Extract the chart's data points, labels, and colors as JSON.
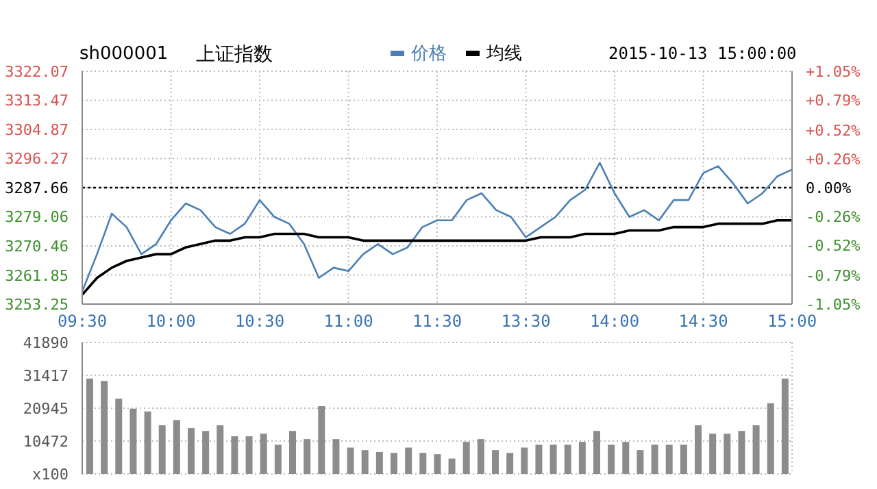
{
  "chart_data": [
    {
      "type": "line",
      "title": "上证指数",
      "subtitle": "sh000001",
      "annotations": [
        "2015-10-13 15:00:00"
      ],
      "categories": [
        "09:30",
        null,
        null,
        null,
        null,
        null,
        "10:00",
        null,
        null,
        null,
        null,
        null,
        "10:30",
        null,
        null,
        null,
        null,
        null,
        "11:00",
        null,
        null,
        null,
        null,
        null,
        "11:30",
        null,
        null,
        null,
        null,
        null,
        "13:30",
        null,
        null,
        null,
        null,
        null,
        "14:00",
        null,
        null,
        null,
        null,
        null,
        "14:30",
        null,
        null,
        null,
        null,
        null,
        "15:00"
      ],
      "series": [
        {
          "name": "价格",
          "color": "#4a7fb5",
          "values": [
            3257,
            3268,
            3280,
            3276,
            3268,
            3271,
            3278,
            3283,
            3281,
            3276,
            3274,
            3277,
            3284,
            3279,
            3277,
            3271,
            3261,
            3264,
            3263,
            3268,
            3271,
            3268,
            3270,
            3276,
            3278,
            3278,
            3284,
            3286,
            3281,
            3279,
            3273,
            3276,
            3279,
            3284,
            3287,
            3295,
            3286,
            3279,
            3281,
            3278,
            3284,
            3284,
            3292,
            3294,
            3289,
            3283,
            3286,
            3291,
            3293
          ]
        },
        {
          "name": "均线",
          "color": "#000000",
          "values": [
            3256,
            3261,
            3264,
            3266,
            3267,
            3268,
            3268,
            3270,
            3271,
            3272,
            3272,
            3273,
            3273,
            3274,
            3274,
            3274,
            3273,
            3273,
            3273,
            3272,
            3272,
            3272,
            3272,
            3272,
            3272,
            3272,
            3272,
            3272,
            3272,
            3272,
            3272,
            3273,
            3273,
            3273,
            3274,
            3274,
            3274,
            3275,
            3275,
            3275,
            3276,
            3276,
            3276,
            3277,
            3277,
            3277,
            3277,
            3278,
            3278
          ]
        }
      ],
      "ylim": [
        3253.25,
        3322.07
      ],
      "yticks": [
        3253.25,
        3261.85,
        3270.46,
        3279.06,
        3287.66,
        3296.27,
        3304.87,
        3313.47,
        3322.07
      ],
      "y2lim": [
        -1.05,
        1.05
      ],
      "y2ticks": [
        {
          "value": -1.05,
          "label": "-1.05%"
        },
        {
          "value": -0.79,
          "label": "-0.79%"
        },
        {
          "value": -0.52,
          "label": "-0.52%"
        },
        {
          "value": -0.26,
          "label": "-0.26%"
        },
        {
          "value": 0,
          "label": "0.00%"
        },
        {
          "value": 0.26,
          "label": "+0.26%"
        },
        {
          "value": 0.52,
          "label": "+0.52%"
        },
        {
          "value": 0.79,
          "label": "+0.79%"
        },
        {
          "value": 1.05,
          "label": "+1.05%"
        }
      ],
      "ref_lines": [
        {
          "axis": "y",
          "value": 3287.66,
          "color": "#000000",
          "line_style": "dotted"
        }
      ],
      "grid": true,
      "legend": "top",
      "marker": "none",
      "line_style": "solid"
    },
    {
      "type": "bar",
      "categories": [
        null,
        null,
        null,
        null,
        null,
        null,
        null,
        null,
        null,
        null,
        null,
        null,
        null,
        null,
        null,
        null,
        null,
        null,
        null,
        null,
        null,
        null,
        null,
        null,
        null,
        null,
        null,
        null,
        null,
        null,
        null,
        null,
        null,
        null,
        null,
        null,
        null,
        null,
        null,
        null,
        null,
        null,
        null,
        null,
        null,
        null,
        null,
        null,
        null
      ],
      "values": [
        30400,
        29600,
        24000,
        20800,
        19900,
        15500,
        17200,
        14600,
        13700,
        15500,
        12000,
        12000,
        12800,
        9300,
        13700,
        11100,
        21600,
        11100,
        8400,
        7600,
        7000,
        6700,
        8400,
        6700,
        6300,
        4900,
        10200,
        11100,
        7600,
        6700,
        8400,
        9300,
        9300,
        9300,
        10200,
        13700,
        9300,
        10200,
        7600,
        9300,
        9300,
        9300,
        15500,
        12800,
        12800,
        13700,
        15500,
        22500,
        30400
      ],
      "color": "#8c8c8c",
      "ylim": [
        0,
        41890
      ],
      "yticks": [
        {
          "value": 0,
          "label": "x100"
        },
        10472,
        20945,
        31417,
        41890
      ],
      "grid": true,
      "tick_labels": "y"
    }
  ]
}
